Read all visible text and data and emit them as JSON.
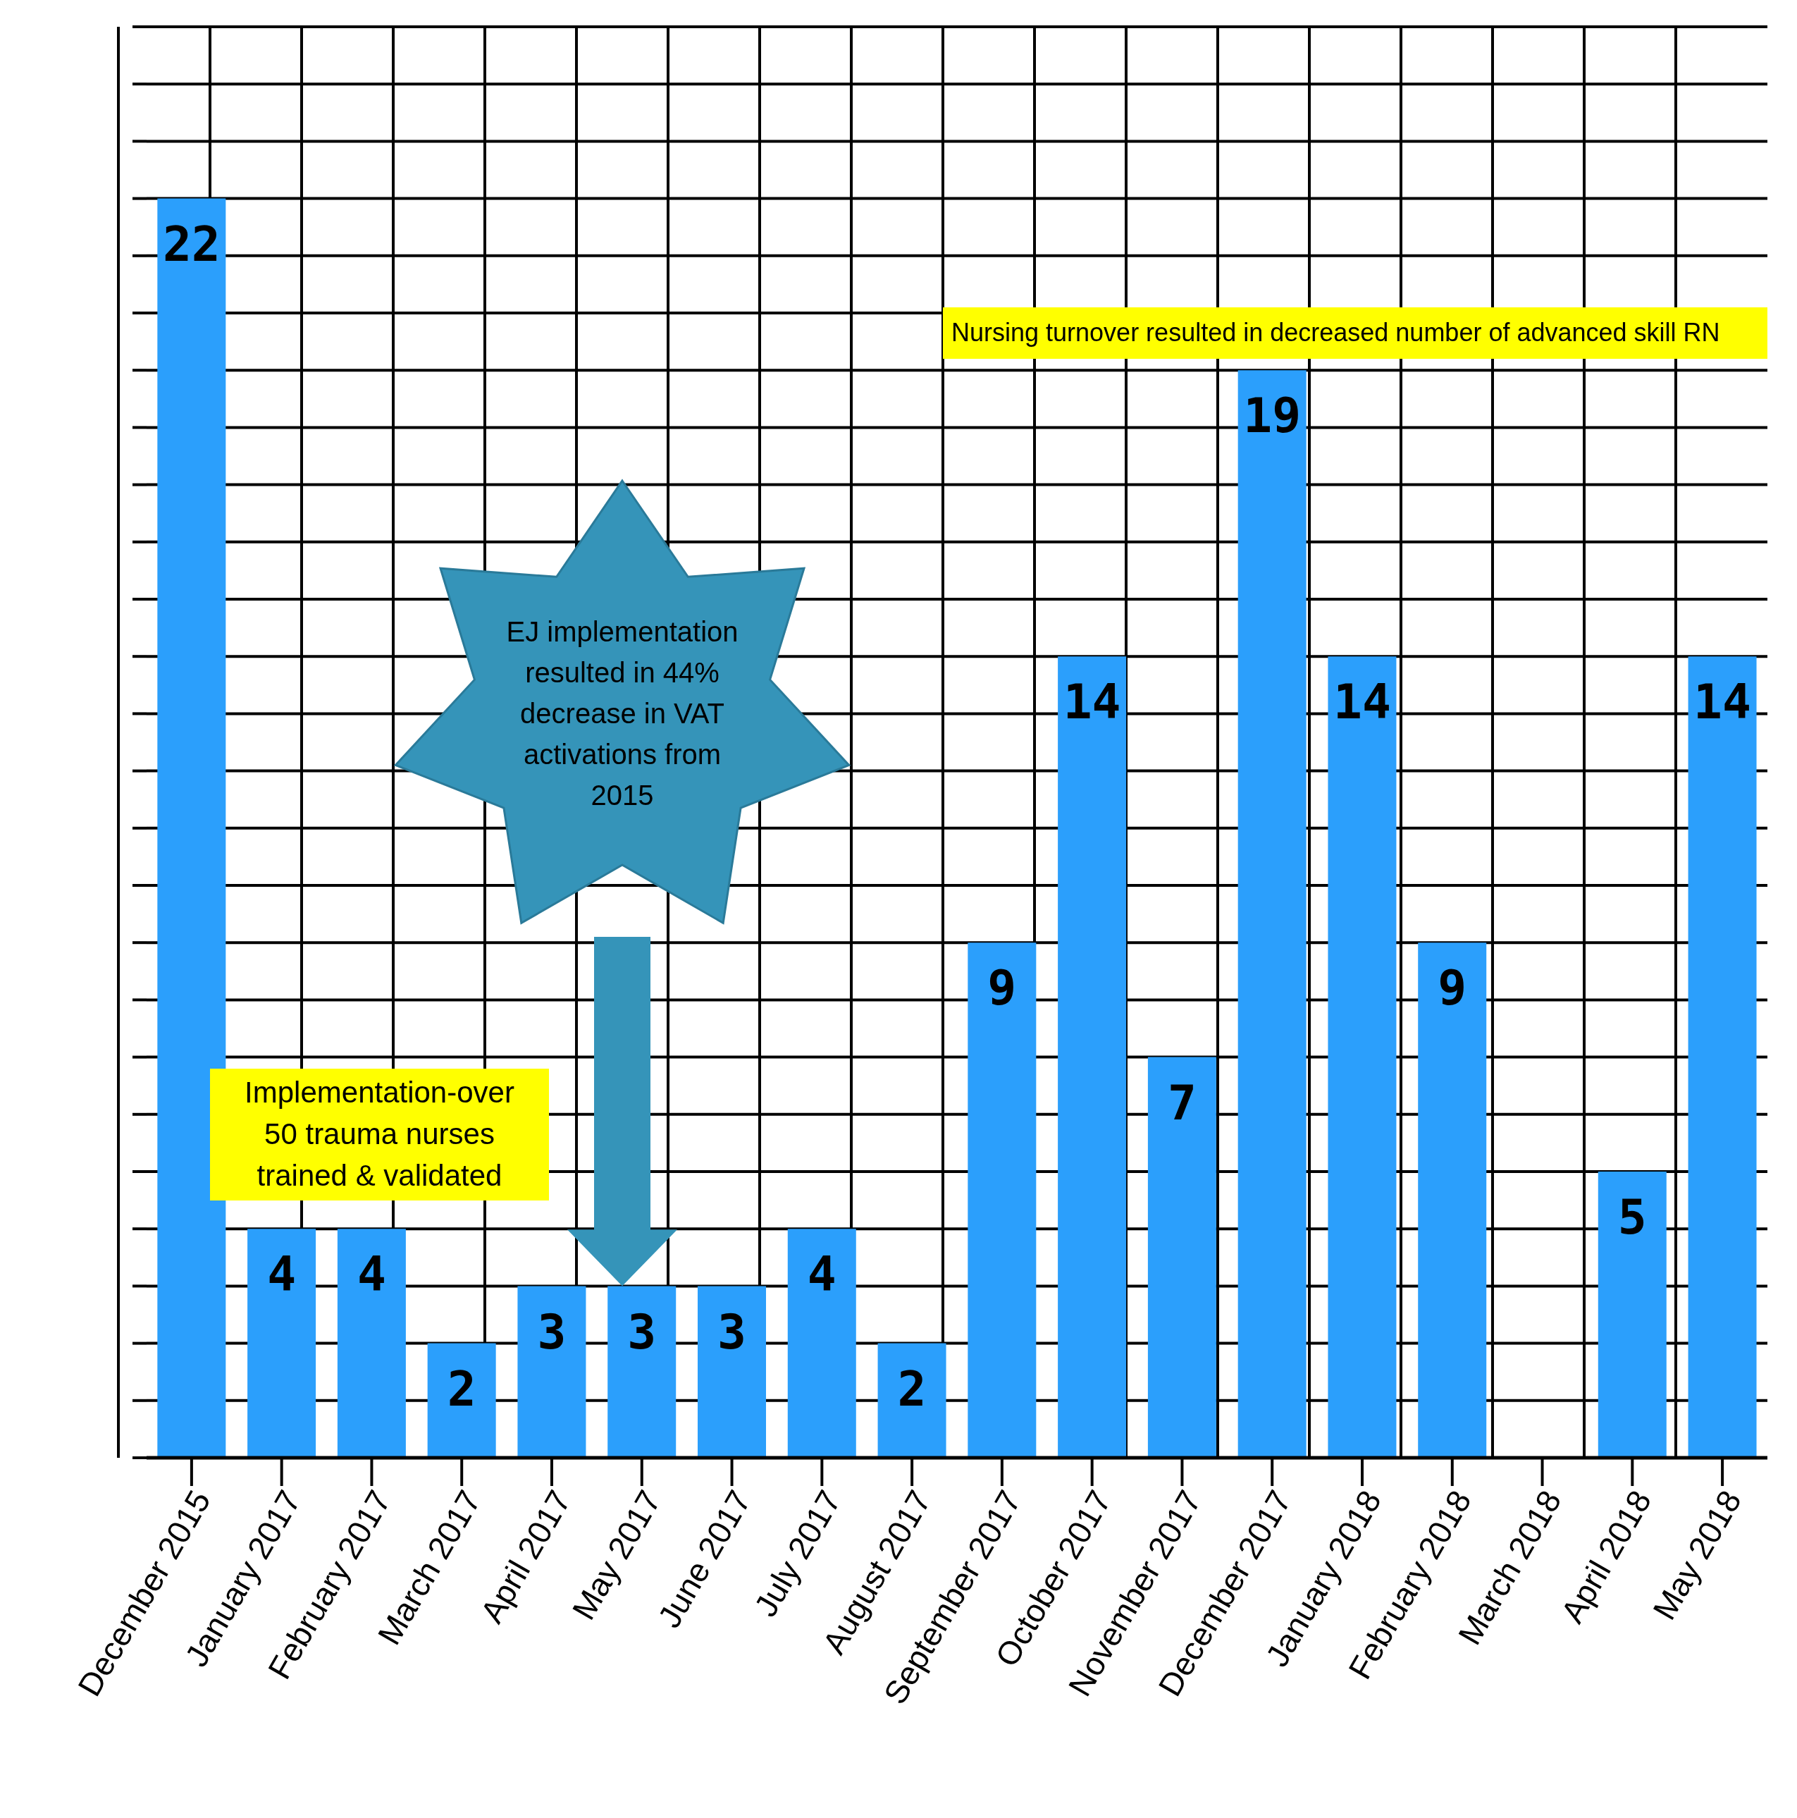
{
  "chart_data": {
    "type": "bar",
    "categories": [
      "December 2015",
      "January 2017",
      "February 2017",
      "March 2017",
      "April 2017",
      "May 2017",
      "June 2017",
      "July 2017",
      "August 2017",
      "September 2017",
      "October 2017",
      "November 2017",
      "December 2017",
      "January 2018",
      "February 2018",
      "March 2018",
      "April 2018",
      "May 2018"
    ],
    "values": [
      22,
      4,
      4,
      2,
      3,
      3,
      3,
      4,
      2,
      9,
      14,
      7,
      19,
      14,
      9,
      null,
      5,
      14
    ],
    "color": "#2b9ffc",
    "data_labels": true,
    "grid": true,
    "tick_labels": "x",
    "ylim": [
      0,
      25
    ],
    "yticks": [
      {
        "value": 0,
        "label": null
      },
      {
        "value": 1,
        "label": null
      },
      {
        "value": 2,
        "label": null
      },
      {
        "value": 3,
        "label": null
      },
      {
        "value": 4,
        "label": null
      },
      {
        "value": 5,
        "label": null
      },
      {
        "value": 6,
        "label": null
      },
      {
        "value": 7,
        "label": null
      },
      {
        "value": 8,
        "label": null
      },
      {
        "value": 9,
        "label": null
      },
      {
        "value": 10,
        "label": null
      },
      {
        "value": 11,
        "label": null
      },
      {
        "value": 12,
        "label": null
      },
      {
        "value": 13,
        "label": null
      },
      {
        "value": 14,
        "label": null
      },
      {
        "value": 15,
        "label": null
      },
      {
        "value": 16,
        "label": null
      },
      {
        "value": 17,
        "label": null
      },
      {
        "value": 18,
        "label": null
      },
      {
        "value": 19,
        "label": null
      },
      {
        "value": 20,
        "label": null
      },
      {
        "value": 21,
        "label": null
      },
      {
        "value": 22,
        "label": null
      },
      {
        "value": 23,
        "label": null
      },
      {
        "value": 24,
        "label": null
      },
      {
        "value": 25,
        "label": null
      }
    ],
    "annotations": [
      "Implementation-over 50 trauma nurses trained & validated",
      "EJ implementation resulted in 44% decrease in VAT activations from 2015",
      "Nursing turnover resulted in decreased number of advanced skill RN"
    ]
  }
}
